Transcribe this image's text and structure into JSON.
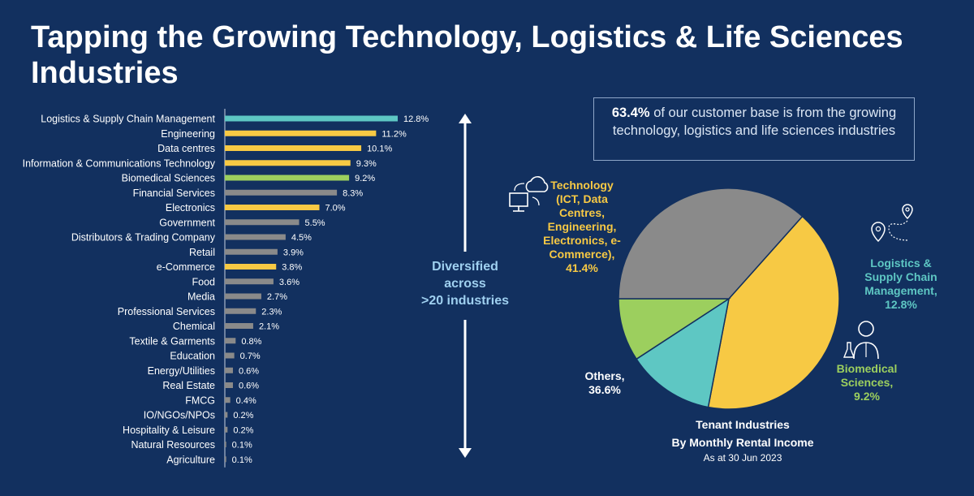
{
  "title": "Tapping the Growing Technology, Logistics & Life Sciences Industries",
  "colors": {
    "background": "#12305f",
    "logistics": "#5ec7c3",
    "technology": "#f7c944",
    "biomedical": "#9ccf5e",
    "others": "#8a8a8a"
  },
  "icons": {
    "technology": "cloud-computer-icon",
    "logistics": "map-pin-route-icon",
    "biomedical": "scientist-icon"
  },
  "callout": {
    "highlight": "63.4%",
    "text": " of our customer base is from the growing technology, logistics and life sciences industries"
  },
  "diversified": {
    "line1": "Diversified",
    "line2": "across",
    "line3": ">20 industries"
  },
  "pie_labels": {
    "technology": [
      "Technology",
      "(ICT, Data",
      "Centres,",
      "Engineering,",
      "Electronics, e-",
      "Commerce),",
      "41.4%"
    ],
    "logistics": [
      "Logistics &",
      "Supply Chain",
      "Management,",
      "12.8%"
    ],
    "biomedical": [
      "Biomedical",
      "Sciences,",
      "9.2%"
    ],
    "others": [
      "Others,",
      "36.6%"
    ]
  },
  "pie_caption": {
    "line1": "Tenant Industries",
    "line2": "By Monthly Rental Income",
    "date": "As at 30 Jun 2023"
  },
  "chart_data": [
    {
      "type": "bar",
      "orientation": "horizontal",
      "categories": [
        "Logistics & Supply Chain Management",
        "Engineering",
        "Data centres",
        "Information & Communications Technology",
        "Biomedical Sciences",
        "Financial Services",
        "Electronics",
        "Government",
        "Distributors & Trading Company",
        "Retail",
        "e-Commerce",
        "Food",
        "Media",
        "Professional Services",
        "Chemical",
        "Textile & Garments",
        "Education",
        "Energy/Utilities",
        "Real Estate",
        "FMCG",
        "IO/NGOs/NPOs",
        "Hospitality & Leisure",
        "Natural Resources",
        "Agriculture"
      ],
      "values": [
        12.8,
        11.2,
        10.1,
        9.3,
        9.2,
        8.3,
        7.0,
        5.5,
        4.5,
        3.9,
        3.8,
        3.6,
        2.7,
        2.3,
        2.1,
        0.8,
        0.7,
        0.6,
        0.6,
        0.4,
        0.2,
        0.2,
        0.1,
        0.1
      ],
      "value_labels": [
        "12.8%",
        "11.2%",
        "10.1%",
        "9.3%",
        "9.2%",
        "8.3%",
        "7.0%",
        "5.5%",
        "4.5%",
        "3.9%",
        "3.8%",
        "3.6%",
        "2.7%",
        "2.3%",
        "2.1%",
        "0.8%",
        "0.7%",
        "0.6%",
        "0.6%",
        "0.4%",
        "0.2%",
        "0.2%",
        "0.1%",
        "0.1%"
      ],
      "groups": [
        "logistics",
        "technology",
        "technology",
        "technology",
        "biomedical",
        "others",
        "technology",
        "others",
        "others",
        "others",
        "technology",
        "others",
        "others",
        "others",
        "others",
        "others",
        "others",
        "others",
        "others",
        "others",
        "others",
        "others",
        "others",
        "others"
      ],
      "xlim": [
        0,
        12.8
      ],
      "grid": false,
      "legend": "none"
    },
    {
      "type": "pie",
      "categories": [
        "Technology (ICT, Data Centres, Engineering, Electronics, e-Commerce)",
        "Logistics & Supply Chain Management",
        "Biomedical Sciences",
        "Others"
      ],
      "values": [
        41.4,
        12.8,
        9.2,
        36.6
      ],
      "groups": [
        "technology",
        "logistics",
        "biomedical",
        "others"
      ]
    }
  ]
}
